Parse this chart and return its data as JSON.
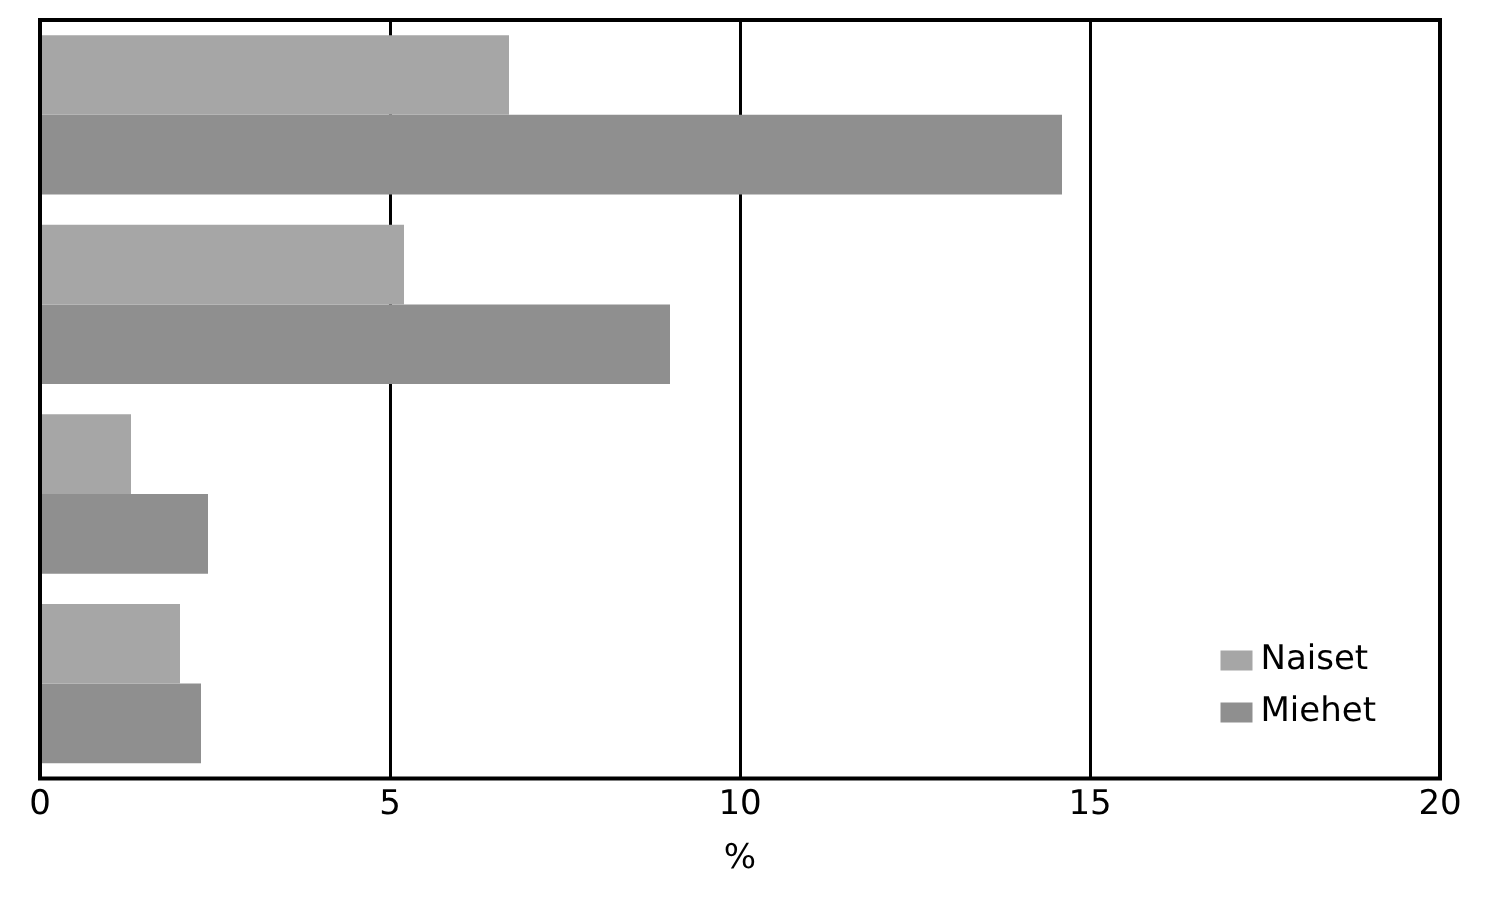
{
  "chart_data": {
    "type": "bar",
    "orientation": "horizontal",
    "categories": [
      null,
      null,
      null,
      null
    ],
    "xlabel": "%",
    "series": [
      {
        "name": "Naiset",
        "color": "#a6a6a6",
        "values": [
          6.7,
          5.2,
          1.3,
          2.0
        ]
      },
      {
        "name": "Miehet",
        "color": "#8f8f8f",
        "values": [
          14.6,
          9.0,
          2.4,
          2.3
        ]
      }
    ],
    "xlim": [
      0,
      20
    ],
    "xticks": [
      0,
      5,
      10,
      15,
      20
    ],
    "grid": "x",
    "legend": "bottom right"
  }
}
